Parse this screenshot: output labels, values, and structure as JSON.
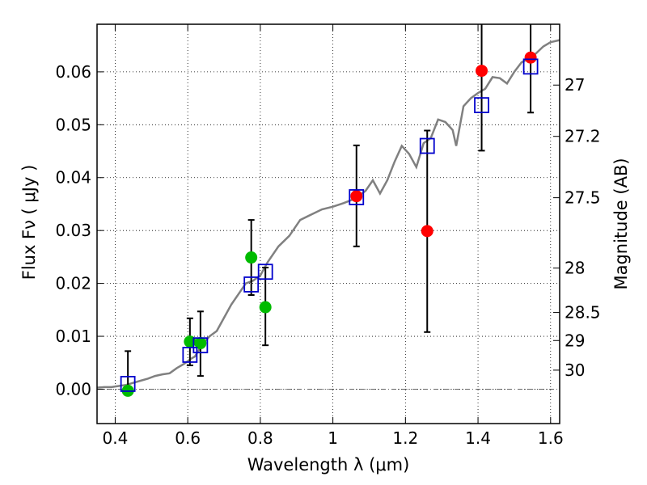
{
  "chart_data": {
    "type": "scatter",
    "xlabel": "Wavelength  λ (μm)",
    "ylabel_left": "Flux  Fν  ( μJy )",
    "ylabel_right": "Magnitude (AB)",
    "xlim": [
      0.35,
      1.625
    ],
    "ylim": [
      -0.0065,
      0.069
    ],
    "grid": true,
    "x_ticks": [
      0.4,
      0.6,
      0.8,
      1.0,
      1.2,
      1.4,
      1.6
    ],
    "x_tick_labels": [
      "0.4",
      "0.6",
      "0.8",
      "1",
      "1.2",
      "1.4",
      "1.6"
    ],
    "y_ticks": [
      0.0,
      0.01,
      0.02,
      0.03,
      0.04,
      0.05,
      0.06
    ],
    "y_tick_labels": [
      "0.00",
      "0.01",
      "0.02",
      "0.03",
      "0.04",
      "0.05",
      "0.06"
    ],
    "right_ticks": [
      {
        "label": "27",
        "flux": 0.0575
      },
      {
        "label": "27.2",
        "flux": 0.0478
      },
      {
        "label": "27.5",
        "flux": 0.0362
      },
      {
        "label": "28",
        "flux": 0.0229
      },
      {
        "label": "28.5",
        "flux": 0.0145
      },
      {
        "label": "29",
        "flux": 0.0092
      },
      {
        "label": "30",
        "flux": 0.0036
      }
    ],
    "colors": {
      "model": "#808080",
      "green_points": "#00bb00",
      "red_points": "#ff0000",
      "model_boxes": "#0000cc",
      "errorbars": "#000000",
      "zero_line": "#666666"
    },
    "model_curve": [
      [
        0.35,
        0.0003
      ],
      [
        0.37,
        0.0004
      ],
      [
        0.39,
        0.0004
      ],
      [
        0.41,
        0.0006
      ],
      [
        0.43,
        0.0008
      ],
      [
        0.45,
        0.0012
      ],
      [
        0.47,
        0.0016
      ],
      [
        0.49,
        0.002
      ],
      [
        0.51,
        0.0025
      ],
      [
        0.53,
        0.0028
      ],
      [
        0.55,
        0.003
      ],
      [
        0.57,
        0.004
      ],
      [
        0.59,
        0.0048
      ],
      [
        0.61,
        0.0058
      ],
      [
        0.62,
        0.0062
      ],
      [
        0.64,
        0.0085
      ],
      [
        0.66,
        0.01
      ],
      [
        0.68,
        0.011
      ],
      [
        0.7,
        0.0135
      ],
      [
        0.72,
        0.016
      ],
      [
        0.74,
        0.018
      ],
      [
        0.76,
        0.02
      ],
      [
        0.78,
        0.0205
      ],
      [
        0.8,
        0.0215
      ],
      [
        0.82,
        0.024
      ],
      [
        0.85,
        0.027
      ],
      [
        0.88,
        0.029
      ],
      [
        0.91,
        0.032
      ],
      [
        0.94,
        0.033
      ],
      [
        0.97,
        0.034
      ],
      [
        1.0,
        0.0345
      ],
      [
        1.03,
        0.0352
      ],
      [
        1.06,
        0.036
      ],
      [
        1.09,
        0.0375
      ],
      [
        1.11,
        0.0395
      ],
      [
        1.13,
        0.037
      ],
      [
        1.15,
        0.0395
      ],
      [
        1.17,
        0.043
      ],
      [
        1.19,
        0.046
      ],
      [
        1.21,
        0.0445
      ],
      [
        1.23,
        0.042
      ],
      [
        1.25,
        0.0465
      ],
      [
        1.27,
        0.0475
      ],
      [
        1.29,
        0.051
      ],
      [
        1.31,
        0.0505
      ],
      [
        1.33,
        0.049
      ],
      [
        1.34,
        0.046
      ],
      [
        1.36,
        0.0535
      ],
      [
        1.38,
        0.055
      ],
      [
        1.4,
        0.056
      ],
      [
        1.42,
        0.0568
      ],
      [
        1.44,
        0.059
      ],
      [
        1.46,
        0.0588
      ],
      [
        1.48,
        0.0578
      ],
      [
        1.5,
        0.06
      ],
      [
        1.52,
        0.0618
      ],
      [
        1.54,
        0.0625
      ],
      [
        1.56,
        0.0635
      ],
      [
        1.58,
        0.0648
      ],
      [
        1.6,
        0.0656
      ],
      [
        1.625,
        0.066
      ]
    ],
    "observed_green": [
      {
        "x": 0.435,
        "y": -0.0003
      },
      {
        "x": 0.606,
        "y": 0.009
      },
      {
        "x": 0.635,
        "y": 0.0087
      },
      {
        "x": 0.775,
        "y": 0.0249
      },
      {
        "x": 0.814,
        "y": 0.0155
      }
    ],
    "observed_red": [
      {
        "x": 1.065,
        "y": 0.0365
      },
      {
        "x": 1.26,
        "y": 0.0299
      },
      {
        "x": 1.41,
        "y": 0.0602
      },
      {
        "x": 1.545,
        "y": 0.0627
      }
    ],
    "errorbars": [
      {
        "x": 0.435,
        "lo": 0.0,
        "hi": 0.0072
      },
      {
        "x": 0.606,
        "lo": 0.0045,
        "hi": 0.0134
      },
      {
        "x": 0.635,
        "lo": 0.0025,
        "hi": 0.0147
      },
      {
        "x": 0.775,
        "lo": 0.0178,
        "hi": 0.032
      },
      {
        "x": 0.814,
        "lo": 0.0083,
        "hi": 0.023
      },
      {
        "x": 1.065,
        "lo": 0.027,
        "hi": 0.0461
      },
      {
        "x": 1.26,
        "lo": 0.0108,
        "hi": 0.0489
      },
      {
        "x": 1.41,
        "lo": 0.0451,
        "hi": 0.07
      },
      {
        "x": 1.545,
        "lo": 0.0523,
        "hi": 0.07
      }
    ],
    "model_boxes": [
      {
        "x": 0.435,
        "y": 0.001
      },
      {
        "x": 0.606,
        "y": 0.0065
      },
      {
        "x": 0.635,
        "y": 0.0083
      },
      {
        "x": 0.775,
        "y": 0.0198
      },
      {
        "x": 0.814,
        "y": 0.0222
      },
      {
        "x": 1.065,
        "y": 0.0363
      },
      {
        "x": 1.26,
        "y": 0.046
      },
      {
        "x": 1.41,
        "y": 0.0537
      },
      {
        "x": 1.545,
        "y": 0.061
      }
    ]
  }
}
